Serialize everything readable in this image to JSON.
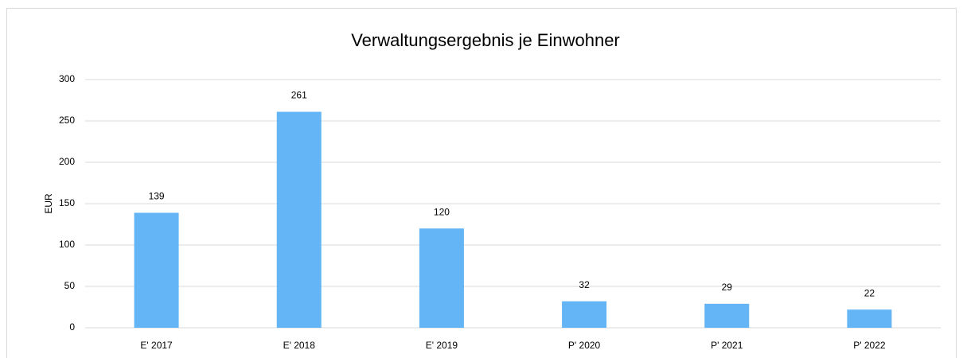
{
  "chart_data": {
    "type": "bar",
    "title": "Verwaltungsergebnis je Einwohner",
    "y_label": "EUR",
    "categories": [
      "E' 2017",
      "E' 2018",
      "E' 2019",
      "P' 2020",
      "P' 2021",
      "P' 2022"
    ],
    "values": [
      139,
      261,
      120,
      32,
      29,
      22
    ],
    "color": "#64b5f6",
    "ylim": [
      0,
      300
    ],
    "yticks": [
      0,
      50,
      100,
      150,
      200,
      250,
      300
    ],
    "grid": true,
    "data_labels": true
  }
}
